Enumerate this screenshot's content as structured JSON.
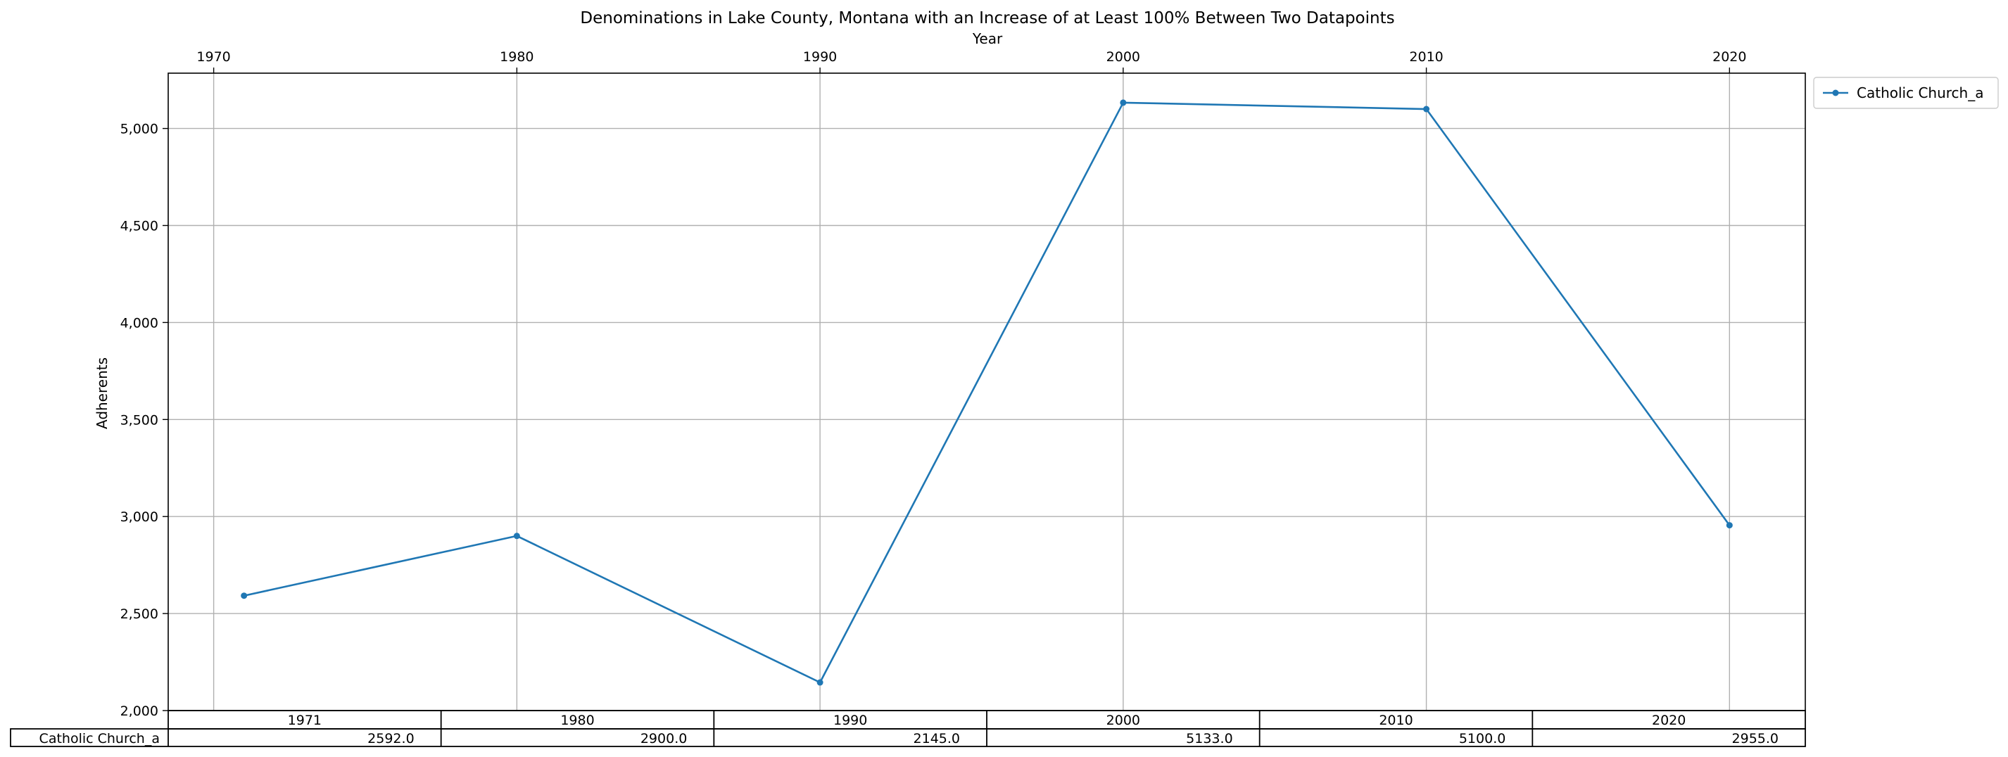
{
  "chart_data": {
    "type": "line",
    "title": "Denominations in Lake County, Montana with an Increase of at Least 100% Between Two Datapoints",
    "xlabel": "Year",
    "ylabel": "Adherents",
    "x_ticks": [
      "1970",
      "1980",
      "1990",
      "2000",
      "2010",
      "2020"
    ],
    "y_ticks": [
      "2,000",
      "2,500",
      "3,000",
      "3,500",
      "4,000",
      "4,500",
      "5,000"
    ],
    "xlim": [
      1968.5,
      2022.5
    ],
    "ylim": [
      2000,
      5285
    ],
    "grid": true,
    "legend_position": "outside-top-right",
    "x": [
      1971,
      1980,
      1990,
      2000,
      2010,
      2020
    ],
    "series": [
      {
        "name": "Catholic Church_a",
        "color": "#1f77b4",
        "values": [
          2592,
          2900,
          2145,
          5133,
          5100,
          2955
        ]
      }
    ],
    "table": {
      "columns": [
        "1971",
        "1980",
        "1990",
        "2000",
        "2010",
        "2020"
      ],
      "rows": [
        {
          "label": "Catholic Church_a",
          "cells": [
            "2592.0",
            "2900.0",
            "2145.0",
            "5133.0",
            "5100.0",
            "2955.0"
          ]
        }
      ]
    }
  }
}
